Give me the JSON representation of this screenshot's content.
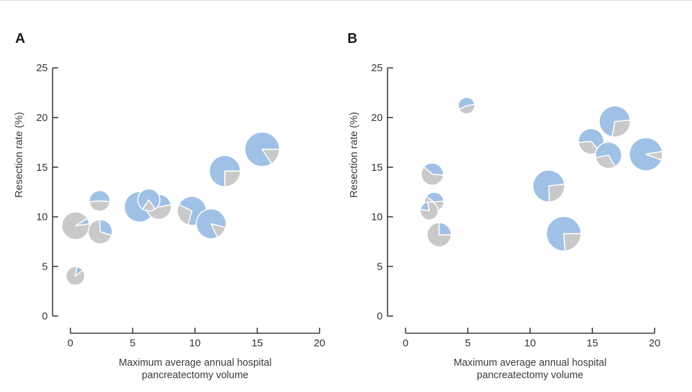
{
  "figure_title": "",
  "chart_data": {
    "type": "scatter-pie",
    "description": "Two-panel bubble scatter plot; each marker is a pie showing blue vs gray proportion",
    "colors": {
      "blue": "#9FC1E5",
      "gray": "#C9C9C9",
      "axis": "#3a3a3a",
      "text": "#333333",
      "slice_border": "#ffffff"
    },
    "panels": [
      {
        "panel_label": "A",
        "ylabel": "Resection rate (%)",
        "xlabel_line1": "Maximum average annual hospital",
        "xlabel_line2": "pancreatectomy volume",
        "x_range": [
          0,
          20
        ],
        "y_range": [
          0,
          25
        ],
        "x_ticks": [
          0,
          5,
          10,
          15,
          20
        ],
        "y_ticks": [
          0,
          5,
          10,
          15,
          20,
          25
        ],
        "points": [
          {
            "x": 0.42,
            "y": 9.1,
            "r": 20,
            "segments": [
              {
                "color": "gray",
                "start": 32,
                "end": 368
              },
              {
                "color": "blue",
                "start": 8,
                "end": 32
              }
            ]
          },
          {
            "x": 2.4,
            "y": 8.5,
            "r": 17.5,
            "segments": [
              {
                "color": "gray",
                "start": 92,
                "end": 342
              },
              {
                "color": "blue",
                "start": -18,
                "end": 92
              }
            ]
          },
          {
            "x": 2.35,
            "y": 11.6,
            "r": 15,
            "segments": [
              {
                "color": "gray",
                "start": 185,
                "end": 356
              },
              {
                "color": "blue",
                "start": -4,
                "end": 185
              }
            ]
          },
          {
            "x": 0.4,
            "y": 4.05,
            "r": 13.5,
            "segments": [
              {
                "color": "gray",
                "start": 80,
                "end": 398
              },
              {
                "color": "blue",
                "start": 38,
                "end": 80
              }
            ]
          },
          {
            "x": 5.55,
            "y": 11.0,
            "r": 22,
            "segments": [
              {
                "color": "blue",
                "start": 0,
                "end": 360
              }
            ]
          },
          {
            "x": 7.1,
            "y": 11.0,
            "r": 18,
            "segments": [
              {
                "color": "gray",
                "start": 150,
                "end": 370
              },
              {
                "color": "blue",
                "start": 10,
                "end": 150
              }
            ]
          },
          {
            "x": 6.3,
            "y": 11.7,
            "r": 16,
            "segments": [
              {
                "color": "blue",
                "start": 305,
                "end": 595
              },
              {
                "color": "gray",
                "start": 235,
                "end": 305
              }
            ]
          },
          {
            "x": 9.75,
            "y": 10.6,
            "r": 21,
            "segments": [
              {
                "color": "blue",
                "start": 255,
                "end": 515
              },
              {
                "color": "gray",
                "start": 155,
                "end": 255
              }
            ]
          },
          {
            "x": 11.3,
            "y": 9.3,
            "r": 21.5,
            "segments": [
              {
                "color": "blue",
                "start": 345,
                "end": 655
              },
              {
                "color": "gray",
                "start": 295,
                "end": 345
              }
            ]
          },
          {
            "x": 12.4,
            "y": 14.6,
            "r": 22.5,
            "segments": [
              {
                "color": "blue",
                "start": 0,
                "end": 270
              },
              {
                "color": "gray",
                "start": 270,
                "end": 360
              }
            ]
          },
          {
            "x": 15.4,
            "y": 16.8,
            "r": 25,
            "segments": [
              {
                "color": "blue",
                "start": 0,
                "end": 303
              },
              {
                "color": "gray",
                "start": 303,
                "end": 360
              }
            ]
          }
        ]
      },
      {
        "panel_label": "B",
        "ylabel": "Resection rate (%)",
        "xlabel_line1": "Maximum average annual hospital",
        "xlabel_line2": "pancreatectomy volume",
        "x_range": [
          0,
          20
        ],
        "y_range": [
          0,
          25
        ],
        "x_ticks": [
          0,
          5,
          10,
          15,
          20
        ],
        "y_ticks": [
          0,
          5,
          10,
          15,
          20,
          25
        ],
        "points": [
          {
            "x": 2.15,
            "y": 14.3,
            "r": 16,
            "segments": [
              {
                "color": "gray",
                "start": 140,
                "end": 355
              },
              {
                "color": "blue",
                "start": -5,
                "end": 140
              }
            ]
          },
          {
            "x": 2.3,
            "y": 11.5,
            "r": 14,
            "segments": [
              {
                "color": "gray",
                "start": 145,
                "end": 365
              },
              {
                "color": "blue",
                "start": 5,
                "end": 145
              }
            ]
          },
          {
            "x": 1.9,
            "y": 10.6,
            "r": 13,
            "segments": [
              {
                "color": "gray",
                "start": 170,
                "end": 460
              },
              {
                "color": "blue",
                "start": 100,
                "end": 170
              }
            ]
          },
          {
            "x": 2.7,
            "y": 8.2,
            "r": 17.5,
            "segments": [
              {
                "color": "gray",
                "start": 90,
                "end": 360
              },
              {
                "color": "blue",
                "start": 0,
                "end": 90
              }
            ]
          },
          {
            "x": 4.9,
            "y": 21.2,
            "r": 12,
            "segments": [
              {
                "color": "gray",
                "start": 205,
                "end": 370
              },
              {
                "color": "blue",
                "start": 10,
                "end": 205
              }
            ]
          },
          {
            "x": 11.5,
            "y": 13.1,
            "r": 23,
            "segments": [
              {
                "color": "blue",
                "start": 7,
                "end": 272
              },
              {
                "color": "gray",
                "start": 272,
                "end": 367
              }
            ]
          },
          {
            "x": 12.7,
            "y": 8.3,
            "r": 25,
            "segments": [
              {
                "color": "blue",
                "start": 0,
                "end": 275
              },
              {
                "color": "gray",
                "start": 275,
                "end": 360
              }
            ]
          },
          {
            "x": 14.9,
            "y": 17.6,
            "r": 18.5,
            "segments": [
              {
                "color": "gray",
                "start": 185,
                "end": 310
              },
              {
                "color": "blue",
                "start": 310,
                "end": 545
              }
            ]
          },
          {
            "x": 16.3,
            "y": 16.2,
            "r": 19,
            "segments": [
              {
                "color": "gray",
                "start": 190,
                "end": 300
              },
              {
                "color": "blue",
                "start": 300,
                "end": 550
              }
            ]
          },
          {
            "x": 16.8,
            "y": 19.6,
            "r": 22.5,
            "segments": [
              {
                "color": "blue",
                "start": 5,
                "end": 260
              },
              {
                "color": "gray",
                "start": 260,
                "end": 365
              }
            ]
          },
          {
            "x": 19.3,
            "y": 16.3,
            "r": 24,
            "segments": [
              {
                "color": "blue",
                "start": 10,
                "end": 340
              },
              {
                "color": "gray",
                "start": 340,
                "end": 370
              }
            ]
          }
        ]
      }
    ]
  }
}
